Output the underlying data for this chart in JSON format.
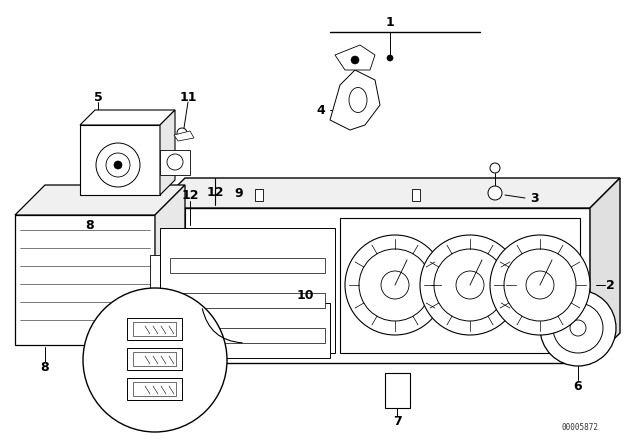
{
  "bg_color": "#ffffff",
  "line_color": "#000000",
  "fig_width": 6.4,
  "fig_height": 4.48,
  "dpi": 100,
  "watermark": "00005872"
}
